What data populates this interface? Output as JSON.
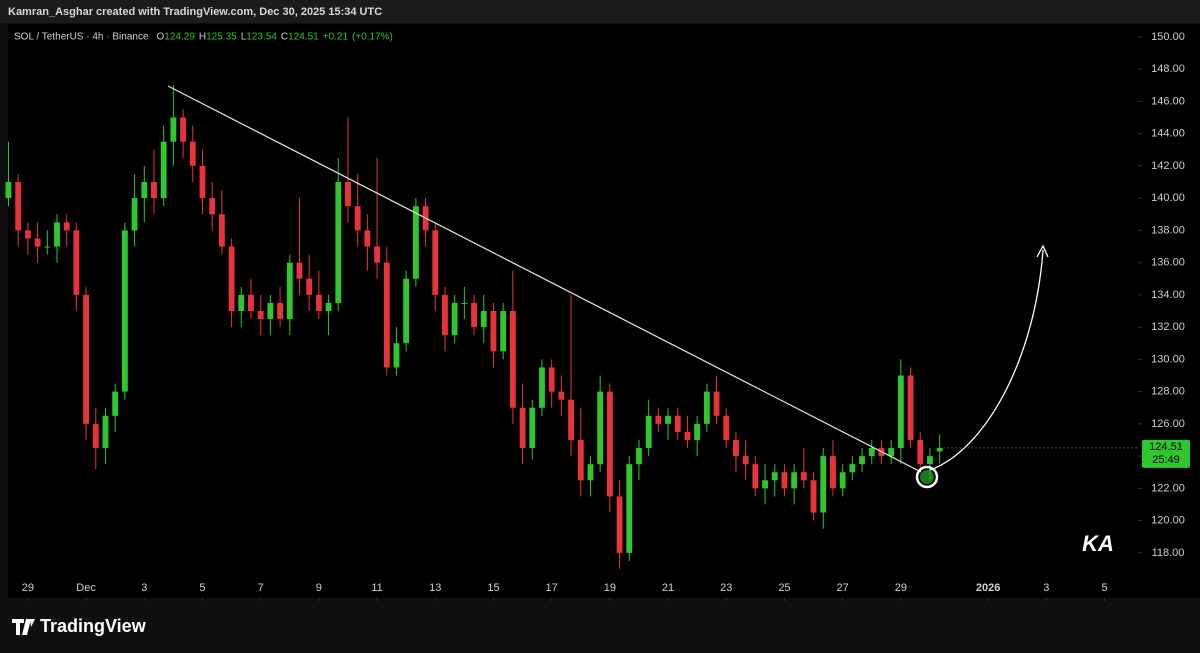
{
  "header": {
    "credit": "Kamran_Asghar created with TradingView.com, Dec 30, 2025 15:34 UTC"
  },
  "footer": {
    "brand": "TradingView"
  },
  "watermark": "KA",
  "chart_data": {
    "type": "candlestick",
    "symbol": "SOL / TetherUS · 4h · Binance",
    "ohlc_legend": {
      "open_label": "O",
      "open": 124.29,
      "high_label": "H",
      "high": 125.35,
      "low_label": "L",
      "low": 123.54,
      "close_label": "C",
      "close": 124.51,
      "change": "+0.21",
      "change_pct": "(+0.17%)"
    },
    "last_price": {
      "value": 124.51,
      "countdown": "25:49"
    },
    "up_color": "#2ec72e",
    "down_color": "#e8333a",
    "open": [
      140,
      141,
      138,
      137.5,
      137,
      137,
      138.5,
      138,
      134,
      126,
      124.5,
      126.5,
      128,
      138,
      140,
      141,
      140,
      143.5,
      145,
      143.5,
      142,
      140,
      139,
      137,
      133,
      134,
      133,
      132.5,
      133.5,
      132.5,
      136,
      135,
      134,
      133,
      133.5,
      141,
      139.5,
      138,
      137,
      136,
      129.5,
      131,
      135,
      139.5,
      138,
      134,
      131.5,
      133.5,
      133.5,
      132,
      133,
      130.5,
      133,
      127,
      124.5,
      127,
      129.5,
      128,
      127.5,
      125,
      122.5,
      123.5,
      128,
      121.5,
      118,
      123.5,
      124.5,
      126.5,
      126,
      126.5,
      125.5,
      125,
      126,
      128,
      126.5,
      125,
      124,
      123.5,
      122,
      122.5,
      123,
      122,
      123,
      122.5,
      120.5,
      124,
      122,
      123,
      123.5,
      124,
      124.5,
      124,
      124.5,
      129,
      125,
      123.5,
      124.29
    ],
    "high": [
      143.5,
      141.5,
      138.5,
      138.5,
      138,
      139,
      139,
      138.5,
      134.5,
      127,
      127,
      128.5,
      138.5,
      141.5,
      142,
      143,
      144.5,
      147,
      145.5,
      144.5,
      143,
      141,
      140.5,
      137.5,
      134.5,
      135,
      134,
      134,
      134.5,
      136.5,
      140,
      136.5,
      135.5,
      134,
      142.5,
      145,
      141.5,
      139,
      142.5,
      137,
      132,
      135.5,
      140,
      140,
      138.5,
      134.5,
      134,
      134.5,
      134,
      134,
      133.5,
      133.5,
      135.5,
      128.5,
      127.5,
      130,
      130,
      129,
      134,
      127,
      124,
      129,
      128.5,
      122.5,
      124,
      125,
      127.5,
      127,
      127,
      127,
      126.5,
      126.5,
      128.5,
      129,
      127,
      125.5,
      125,
      124,
      123.5,
      123.5,
      123.5,
      123.5,
      124.5,
      123,
      124.5,
      125,
      123.5,
      124,
      124.5,
      125,
      125,
      125,
      130,
      129.5,
      125.5,
      124.5,
      125.35
    ],
    "low": [
      139.5,
      137,
      136.5,
      136,
      136.5,
      136,
      137,
      133,
      125,
      123.2,
      123.5,
      125.5,
      127.5,
      137,
      138.5,
      139,
      139.5,
      142,
      142.5,
      141,
      139,
      138,
      136.5,
      132,
      132,
      132.5,
      131.5,
      131.5,
      132,
      131.5,
      134,
      133,
      132.5,
      131.5,
      133,
      138.5,
      137,
      135.5,
      135,
      129,
      129,
      130.5,
      134.5,
      137,
      133,
      130.5,
      131,
      132.5,
      131.5,
      131,
      129.5,
      130,
      126,
      123.5,
      123.8,
      126.5,
      127,
      126.5,
      124,
      121.5,
      121.5,
      123,
      120.5,
      117,
      117.5,
      122.5,
      124,
      125.5,
      125,
      125,
      124.5,
      124,
      125.5,
      126,
      124.5,
      123,
      122.5,
      121.5,
      121,
      121.5,
      121.5,
      121,
      122,
      120,
      119.5,
      121.5,
      121.5,
      122.5,
      123,
      123.5,
      123.5,
      123.5,
      123.5,
      124.5,
      123,
      122.5,
      123.54
    ],
    "close": [
      141,
      138,
      137.5,
      137,
      137,
      138.5,
      138,
      134,
      126,
      124.5,
      126.5,
      128,
      138,
      140,
      141,
      140,
      143.5,
      145,
      143.5,
      142,
      140,
      139,
      137,
      133,
      134,
      133,
      132.5,
      133.5,
      132.5,
      136,
      135,
      134,
      133,
      133.5,
      141,
      139.5,
      138,
      137,
      136,
      129.5,
      131,
      135,
      139.5,
      138,
      134,
      131.5,
      133.5,
      133.5,
      132,
      133,
      130.5,
      133,
      127,
      124.5,
      127,
      129.5,
      128,
      127.5,
      125,
      122.5,
      123.5,
      128,
      121.5,
      118,
      123.5,
      124.5,
      126.5,
      126,
      126.5,
      125.5,
      125,
      126,
      128,
      126.5,
      125,
      124,
      123.5,
      122,
      122.5,
      123,
      122,
      123,
      122.5,
      120.5,
      124,
      122,
      123,
      123.5,
      124,
      124.5,
      124,
      124.5,
      129,
      125,
      123.5,
      124,
      124.51
    ],
    "xlim": [
      -0.05,
      116.45
    ],
    "xticks": [
      {
        "value": 2,
        "label": "29"
      },
      {
        "value": 8,
        "label": "Dec"
      },
      {
        "value": 14,
        "label": "3"
      },
      {
        "value": 20,
        "label": "5"
      },
      {
        "value": 26,
        "label": "7"
      },
      {
        "value": 32,
        "label": "9"
      },
      {
        "value": 38,
        "label": "11"
      },
      {
        "value": 44,
        "label": "13"
      },
      {
        "value": 50,
        "label": "15"
      },
      {
        "value": 56,
        "label": "17"
      },
      {
        "value": 62,
        "label": "19"
      },
      {
        "value": 68,
        "label": "21"
      },
      {
        "value": 74,
        "label": "23"
      },
      {
        "value": 80,
        "label": "25"
      },
      {
        "value": 86,
        "label": "27"
      },
      {
        "value": 92,
        "label": "29"
      },
      {
        "value": 101,
        "label": "2026"
      },
      {
        "value": 107,
        "label": "3"
      },
      {
        "value": 113,
        "label": "5"
      }
    ],
    "ylim": [
      115.2,
      150.8
    ],
    "yticks": [
      {
        "value": 118,
        "label": "118.00"
      },
      {
        "value": 120,
        "label": "120.00"
      },
      {
        "value": 122,
        "label": "122.00"
      },
      {
        "value": 124,
        "label": "124.00"
      },
      {
        "value": 126,
        "label": "126.00"
      },
      {
        "value": 128,
        "label": "128.00"
      },
      {
        "value": 130,
        "label": "130.00"
      },
      {
        "value": 132,
        "label": "132.00"
      },
      {
        "value": 134,
        "label": "134.00"
      },
      {
        "value": 136,
        "label": "136.00"
      },
      {
        "value": 138,
        "label": "138.00"
      },
      {
        "value": 140,
        "label": "140.00"
      },
      {
        "value": 142,
        "label": "142.00"
      },
      {
        "value": 144,
        "label": "144.00"
      },
      {
        "value": 146,
        "label": "146.00"
      },
      {
        "value": 148,
        "label": "148.00"
      },
      {
        "value": 150,
        "label": "150.00"
      }
    ]
  }
}
